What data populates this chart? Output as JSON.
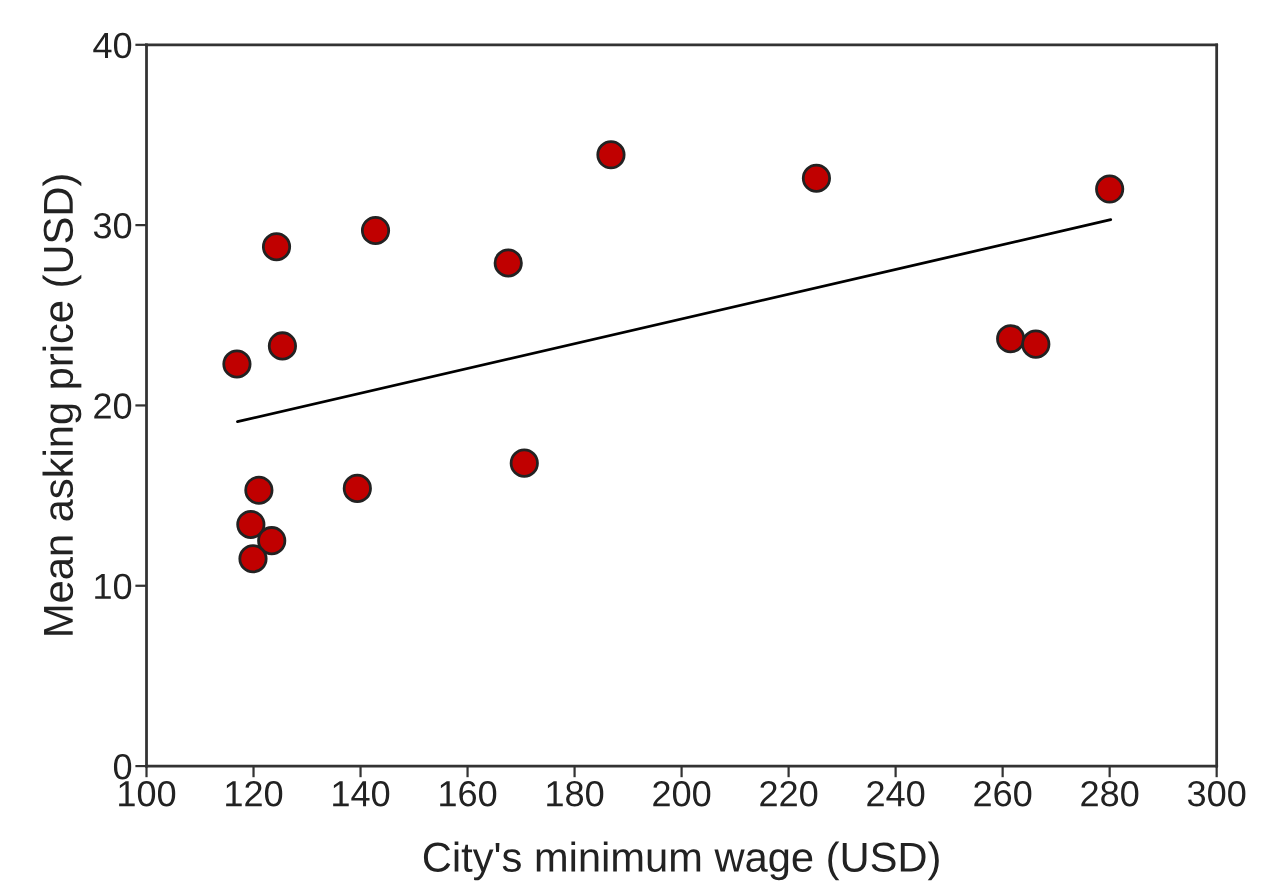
{
  "chart_data": {
    "type": "scatter",
    "xlabel": "City's minimum wage (USD)",
    "ylabel": "Mean asking price (USD)",
    "x": [
      116.9,
      124.3,
      125.4,
      142.8,
      167.6,
      186.8,
      121.0,
      119.5,
      123.4,
      119.9,
      139.4,
      170.6,
      225.2,
      261.5,
      266.2,
      280.0
    ],
    "series": [
      {
        "color": "#c00000",
        "marker": "circle",
        "values": [
          22.3,
          28.8,
          23.3,
          29.7,
          27.9,
          33.9,
          15.3,
          13.4,
          12.5,
          11.5,
          15.4,
          16.8,
          32.6,
          23.7,
          23.4,
          32.0
        ]
      },
      {
        "type": "line",
        "color": "#000000",
        "marker": "none",
        "line_style": "solid",
        "x": [
          117.0,
          280.2
        ],
        "values": [
          19.1,
          30.3
        ]
      }
    ],
    "xlim": [
      100,
      300
    ],
    "xticks": [
      100,
      120,
      140,
      160,
      180,
      200,
      220,
      240,
      260,
      280,
      300
    ],
    "ylim": [
      0,
      40
    ],
    "yticks": [
      0,
      10,
      20,
      30,
      40
    ],
    "grid": false,
    "legend": false
  }
}
